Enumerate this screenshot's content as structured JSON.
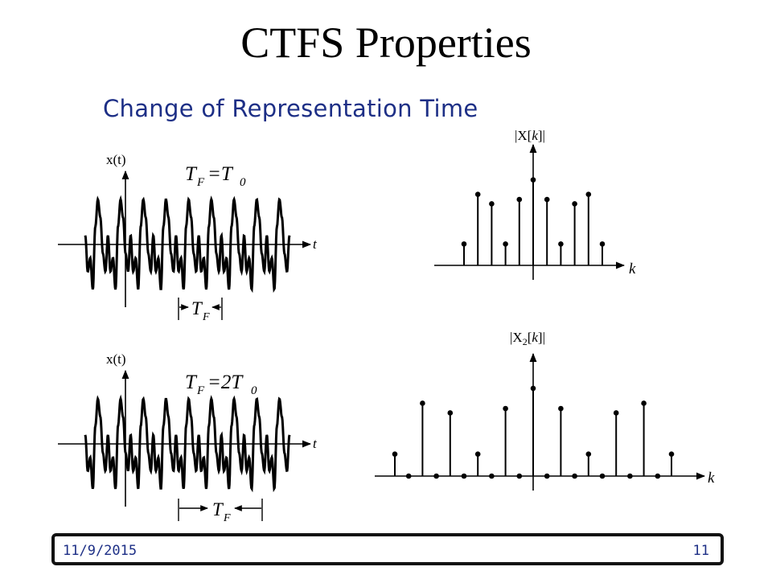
{
  "slide": {
    "title": "CTFS Properties",
    "subtitle": "Change of Representation Time",
    "date": "11/9/2015",
    "page": "11"
  },
  "plots": {
    "top_signal": {
      "y_label": "x(t)",
      "x_label": "t",
      "eq_lhs": "T",
      "eq_lhs_sub": "F",
      "eq_rhs": "=T",
      "eq_rhs_sub": "0",
      "period_label": "T",
      "period_label_sub": "F"
    },
    "bottom_signal": {
      "y_label": "x(t)",
      "x_label": "t",
      "eq_lhs": "T",
      "eq_lhs_sub": "F",
      "eq_rhs": "=2T",
      "eq_rhs_sub": "0",
      "period_label": "T",
      "period_label_sub": "F"
    },
    "top_spectrum": {
      "y_label_pre": "|X[",
      "y_label_var": "k",
      "y_label_post": "]|",
      "x_label": "k"
    },
    "bottom_spectrum": {
      "y_label_pre": "|X",
      "y_label_sub": "2",
      "y_label_mid": "[",
      "y_label_var": "k",
      "y_label_post": "]|",
      "x_label": "k"
    }
  },
  "chart_data": [
    {
      "type": "line",
      "name": "top_signal",
      "x": [
        -0.8,
        -0.7,
        -0.6,
        -0.5,
        -0.4,
        -0.3,
        -0.2,
        -0.1,
        0.0,
        0.1,
        0.2,
        0.3,
        0.4,
        0.5,
        0.6,
        0.7,
        0.8,
        0.9,
        1.0
      ],
      "y": [
        0.2,
        -0.6,
        -0.3,
        -1.0,
        0.4,
        1.0,
        0.6,
        -0.2,
        -0.6,
        0.2,
        -0.6,
        -0.3,
        -1.0,
        0.4,
        1.0,
        0.6,
        -0.2,
        -0.6,
        0.2
      ],
      "periods_shown": 4.5
    },
    {
      "type": "line",
      "name": "bottom_signal",
      "x": [
        -0.8,
        -0.7,
        -0.6,
        -0.5,
        -0.4,
        -0.3,
        -0.2,
        -0.1,
        0.0,
        0.1,
        0.2,
        0.3,
        0.4,
        0.5,
        0.6,
        0.7,
        0.8,
        0.9,
        1.0
      ],
      "y": [
        0.2,
        -0.6,
        -0.3,
        -1.0,
        0.4,
        1.0,
        0.6,
        -0.2,
        -0.6,
        0.2,
        -0.6,
        -0.3,
        -1.0,
        0.4,
        1.0,
        0.6,
        -0.2,
        -0.6,
        0.2
      ],
      "periods_shown": 4.5
    },
    {
      "type": "scatter",
      "name": "top_spectrum",
      "x": [
        -5,
        -4,
        -3,
        -2,
        -1,
        0,
        1,
        2,
        3,
        4,
        5
      ],
      "y": [
        0.25,
        0.83,
        0.72,
        0.25,
        0.77,
        1.0,
        0.77,
        0.25,
        0.72,
        0.83,
        0.25
      ],
      "ylim": [
        0,
        1.1
      ]
    },
    {
      "type": "scatter",
      "name": "bottom_spectrum",
      "x": [
        -10,
        -9,
        -8,
        -7,
        -6,
        -5,
        -4,
        -3,
        -2,
        -1,
        0,
        1,
        2,
        3,
        4,
        5,
        6,
        7,
        8,
        9,
        10
      ],
      "y": [
        0.25,
        0,
        0.83,
        0,
        0.72,
        0,
        0.25,
        0,
        0.77,
        0,
        1.0,
        0,
        0.77,
        0,
        0.25,
        0,
        0.72,
        0,
        0.83,
        0,
        0.25
      ],
      "ylim": [
        0,
        1.1
      ]
    }
  ]
}
